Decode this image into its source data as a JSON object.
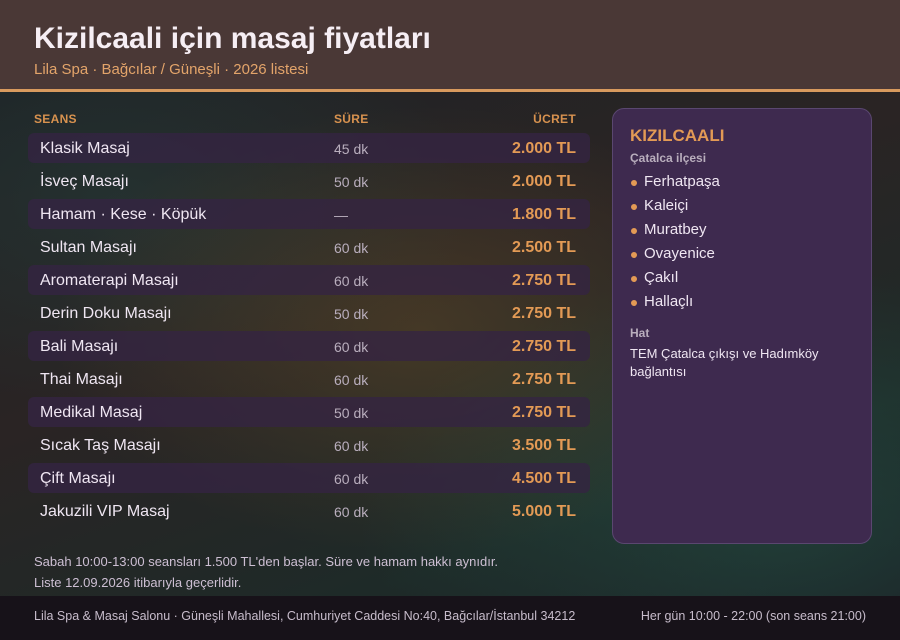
{
  "header": {
    "title": "Kizilcaali için masaj fiyatları",
    "subtitle": "Lila Spa · Bağcılar / Güneşli · 2026 listesi"
  },
  "table": {
    "columns": {
      "seans": "SEANS",
      "sure": "SÜRE",
      "ucret": "ÜCRET"
    },
    "rows": [
      {
        "name": "Klasik Masaj",
        "duration": "45 dk",
        "price": "2.000 TL"
      },
      {
        "name": "İsveç Masajı",
        "duration": "50 dk",
        "price": "2.000 TL"
      },
      {
        "name": "Hamam · Kese · Köpük",
        "duration": "—",
        "price": "1.800 TL"
      },
      {
        "name": "Sultan Masajı",
        "duration": "60 dk",
        "price": "2.500 TL"
      },
      {
        "name": "Aromaterapi Masajı",
        "duration": "60 dk",
        "price": "2.750 TL"
      },
      {
        "name": "Derin Doku Masajı",
        "duration": "50 dk",
        "price": "2.750 TL"
      },
      {
        "name": "Bali Masajı",
        "duration": "60 dk",
        "price": "2.750 TL"
      },
      {
        "name": "Thai Masajı",
        "duration": "60 dk",
        "price": "2.750 TL"
      },
      {
        "name": "Medikal Masaj",
        "duration": "50 dk",
        "price": "2.750 TL"
      },
      {
        "name": "Sıcak Taş Masajı",
        "duration": "60 dk",
        "price": "3.500 TL"
      },
      {
        "name": "Çift Masajı",
        "duration": "60 dk",
        "price": "4.500 TL"
      },
      {
        "name": "Jakuzili VIP Masaj",
        "duration": "60 dk",
        "price": "5.000 TL"
      }
    ]
  },
  "note": {
    "line1": "Sabah 10:00-13:00 seansları 1.500 TL'den başlar. Süre ve hamam hakkı aynıdır.",
    "line2": "Liste 12.09.2026 itibarıyla geçerlidir."
  },
  "panel": {
    "title": "KIZILCAALI",
    "subtitle": "Çatalca ilçesi",
    "places": [
      "Ferhatpaşa",
      "Kaleiçi",
      "Muratbey",
      "Ovayenice",
      "Çakıl",
      "Hallaçlı"
    ],
    "hat_label": "Hat",
    "hat_text": "TEM Çatalca çıkışı ve Hadımköy bağlantısı"
  },
  "footer": {
    "address": "Lila Spa & Masaj Salonu · Güneşli Mahallesi, Cumhuriyet Caddesi No:40, Bağcılar/İstanbul 34212",
    "hours": "Her gün 10:00 - 22:00 (son seans 21:00)"
  },
  "colors": {
    "accent": "#e39a55",
    "header_bg": "#4a3836",
    "panel_bg": "#3e2a4f",
    "row_alt_bg": "#342442"
  }
}
